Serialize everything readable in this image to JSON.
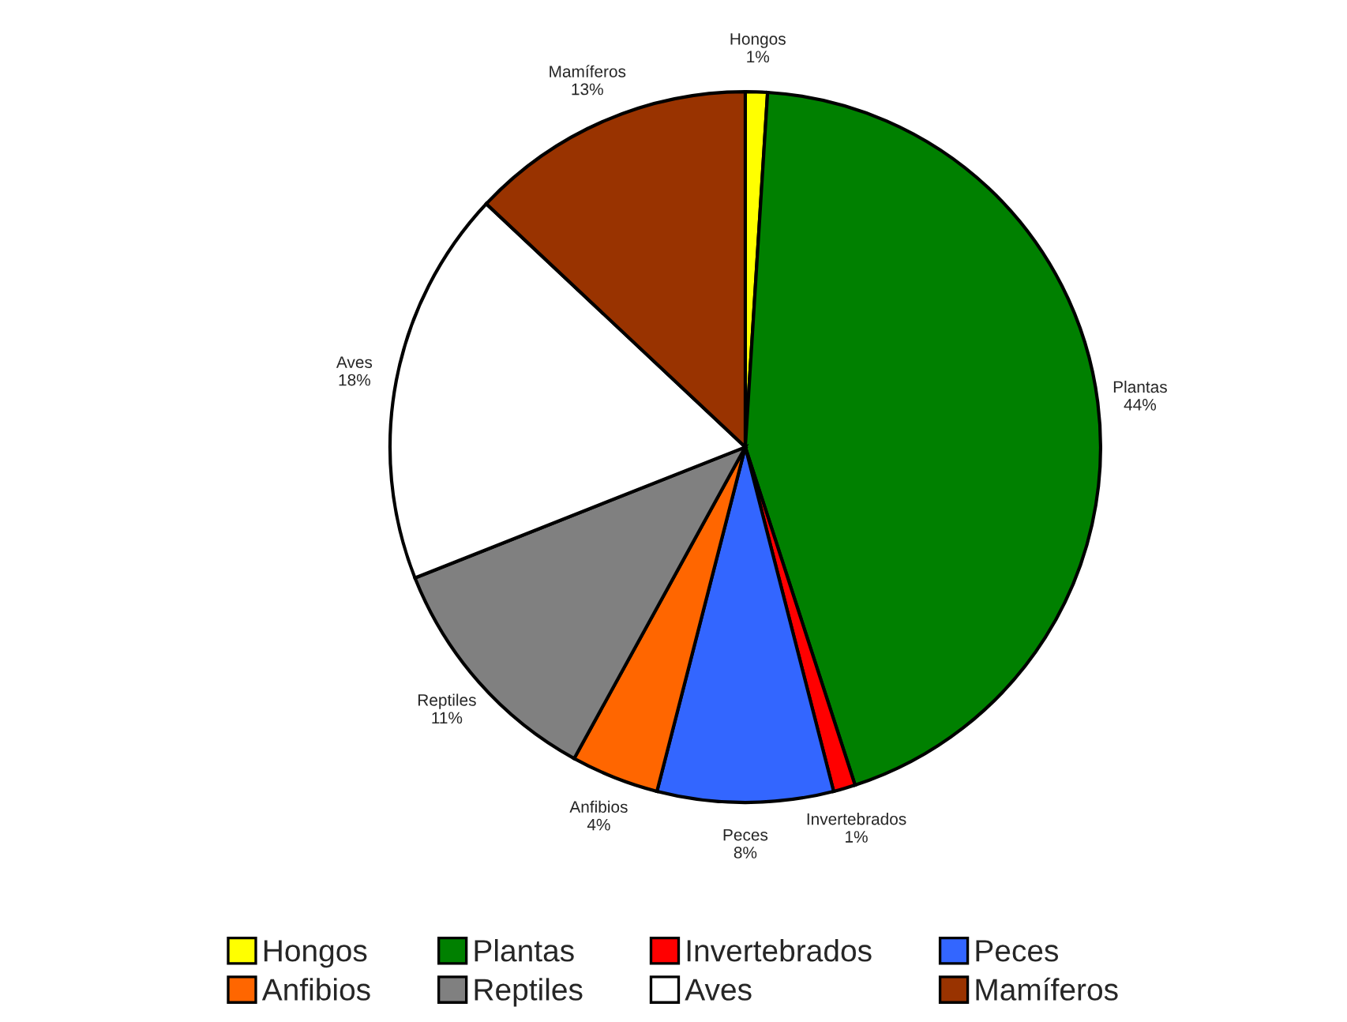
{
  "chart_data": {
    "type": "pie",
    "categories": [
      "Hongos",
      "Plantas",
      "Invertebrados",
      "Peces",
      "Anfibios",
      "Reptiles",
      "Aves",
      "Mamíferos"
    ],
    "values": [
      1,
      44,
      1,
      8,
      4,
      11,
      18,
      13
    ],
    "colors": [
      "#ffff00",
      "#008000",
      "#ff0000",
      "#3366ff",
      "#ff6600",
      "#808080",
      "#ffffff",
      "#993300"
    ],
    "value_labels": [
      "1%",
      "44%",
      "1%",
      "8%",
      "4%",
      "11%",
      "18%",
      "13%"
    ],
    "legend": "bottom"
  }
}
